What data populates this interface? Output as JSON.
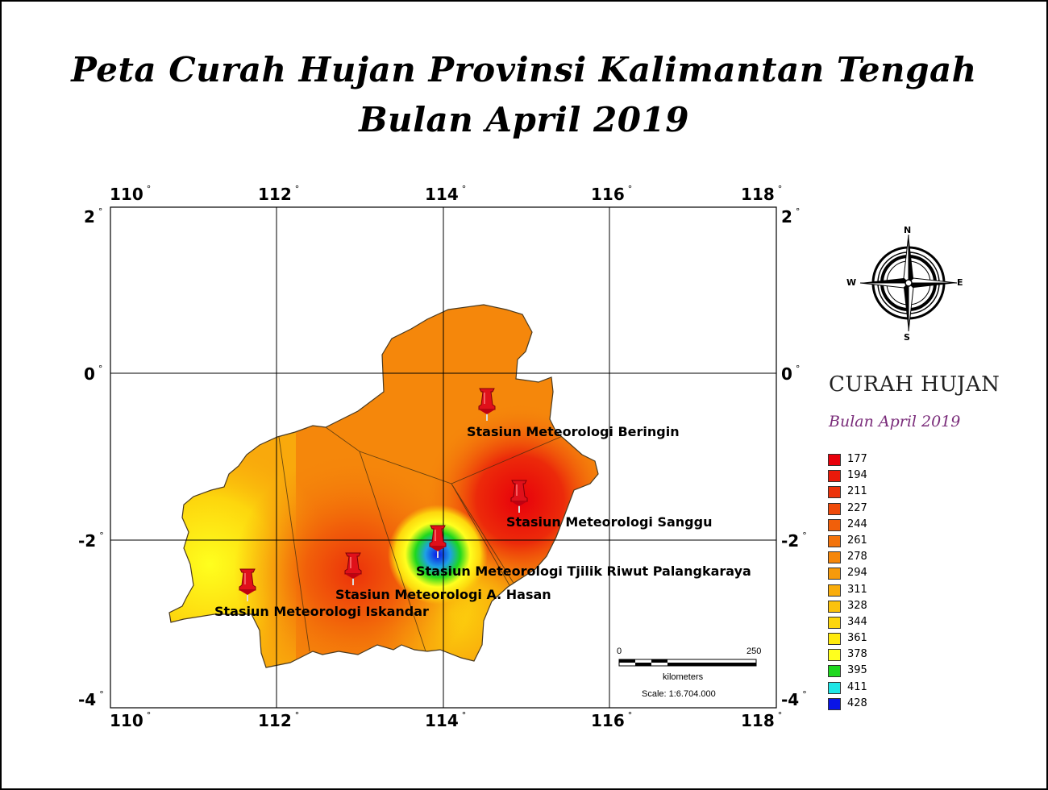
{
  "title_line1": "Peta Curah Hujan Provinsi Kalimantan Tengah",
  "title_line2": "Bulan April 2019",
  "grid": {
    "longitudes": [
      "110",
      "112",
      "114",
      "116",
      "118"
    ],
    "latitudes": [
      "2",
      "0",
      "-2",
      "-4"
    ],
    "degree_symbol": "°"
  },
  "stations": [
    {
      "name": "Stasiun Meteorologi Beringin"
    },
    {
      "name": "Stasiun Meteorologi Sanggu"
    },
    {
      "name": "Stasiun Meteorologi  Tjilik Riwut Palangkaraya"
    },
    {
      "name": "Stasiun Meteorologi A. Hasan"
    },
    {
      "name": "Stasiun Meteorologi Iskandar"
    }
  ],
  "compass": {
    "n": "N",
    "e": "E",
    "s": "S",
    "w": "W"
  },
  "scale_bar": {
    "start": "0",
    "end": "250",
    "unit": "kilometers",
    "scale_text": "Scale: 1:6.704.000"
  },
  "legend": {
    "title": "CURAH HUJAN",
    "subtitle": "Bulan April 2019",
    "items": [
      {
        "value": "177",
        "color": "#e8000b"
      },
      {
        "value": "194",
        "color": "#ea1a0a"
      },
      {
        "value": "211",
        "color": "#ec320a"
      },
      {
        "value": "227",
        "color": "#ef4a0a"
      },
      {
        "value": "244",
        "color": "#f15f0a"
      },
      {
        "value": "261",
        "color": "#f3730b"
      },
      {
        "value": "278",
        "color": "#f5870b"
      },
      {
        "value": "294",
        "color": "#f79a0b"
      },
      {
        "value": "311",
        "color": "#f9ad0c"
      },
      {
        "value": "328",
        "color": "#fbc20c"
      },
      {
        "value": "344",
        "color": "#fdd60d"
      },
      {
        "value": "361",
        "color": "#ffea0d"
      },
      {
        "value": "378",
        "color": "#ffff1e"
      },
      {
        "value": "395",
        "color": "#1ed81e"
      },
      {
        "value": "411",
        "color": "#1ee6e6"
      },
      {
        "value": "428",
        "color": "#0a14e6"
      }
    ]
  }
}
